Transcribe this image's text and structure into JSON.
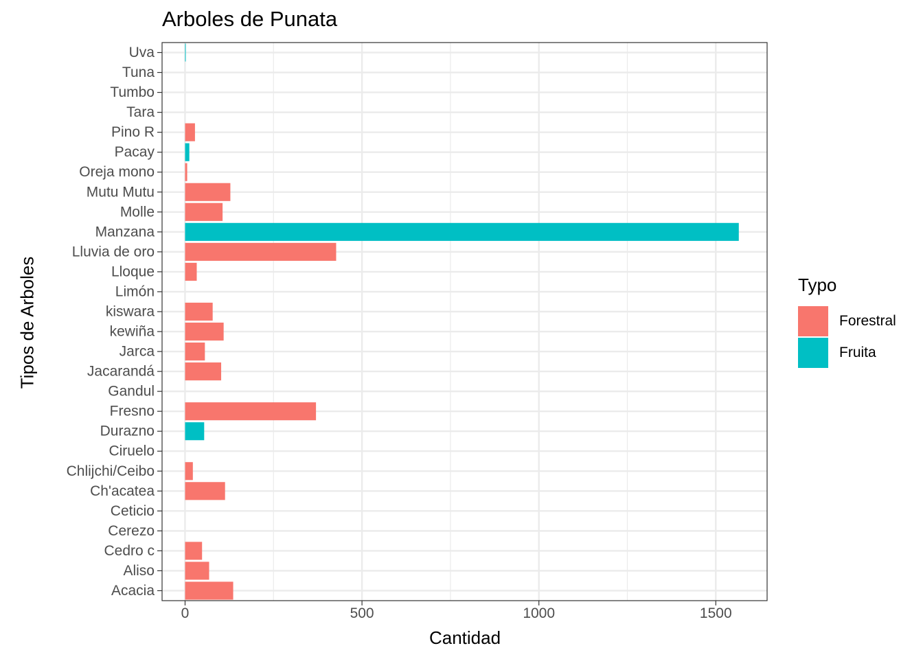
{
  "chart_data": {
    "type": "bar",
    "orientation": "horizontal",
    "title": "Arboles de Punata",
    "xlabel": "Cantidad",
    "ylabel": "Tipos de Arboles",
    "xlim": [
      -65,
      1645
    ],
    "xticks": [
      0,
      500,
      1000,
      1500
    ],
    "grid": true,
    "legend": {
      "title": "Typo",
      "placement": "right"
    },
    "colors": {
      "Forestral": "#F8766D",
      "Fruita": "#00BFC4"
    },
    "categories": [
      "Acacia",
      "Aliso",
      "Cedro c",
      "Cerezo",
      "Ceticio",
      "Ch'acatea",
      "Chlijchi/Ceibo",
      "Ciruelo",
      "Durazno",
      "Fresno",
      "Gandul",
      "Jacarandá",
      "Jarca",
      "kewiña",
      "kiswara",
      "Limón",
      "Lloque",
      "Lluvia de oro",
      "Manzana",
      "Molle",
      "Mutu Mutu",
      "Oreja mono",
      "Pacay",
      "Pino R",
      "Tara",
      "Tumbo",
      "Tuna",
      "Uva"
    ],
    "values": [
      136,
      68,
      48,
      0,
      0,
      113,
      22,
      0,
      54,
      370,
      0,
      102,
      56,
      109,
      78,
      0,
      33,
      427,
      1565,
      106,
      128,
      6,
      12,
      28,
      0,
      0,
      0,
      1
    ],
    "types": [
      "Forestral",
      "Forestral",
      "Forestral",
      "Fruita",
      "Forestral",
      "Forestral",
      "Forestral",
      "Fruita",
      "Fruita",
      "Forestral",
      "Fruita",
      "Forestral",
      "Forestral",
      "Forestral",
      "Forestral",
      "Fruita",
      "Forestral",
      "Forestral",
      "Fruita",
      "Forestral",
      "Forestral",
      "Forestral",
      "Fruita",
      "Forestral",
      "Forestral",
      "Fruita",
      "Fruita",
      "Fruita"
    ],
    "series": [
      {
        "name": "Forestral",
        "color": "#F8766D"
      },
      {
        "name": "Fruita",
        "color": "#00BFC4"
      }
    ]
  }
}
